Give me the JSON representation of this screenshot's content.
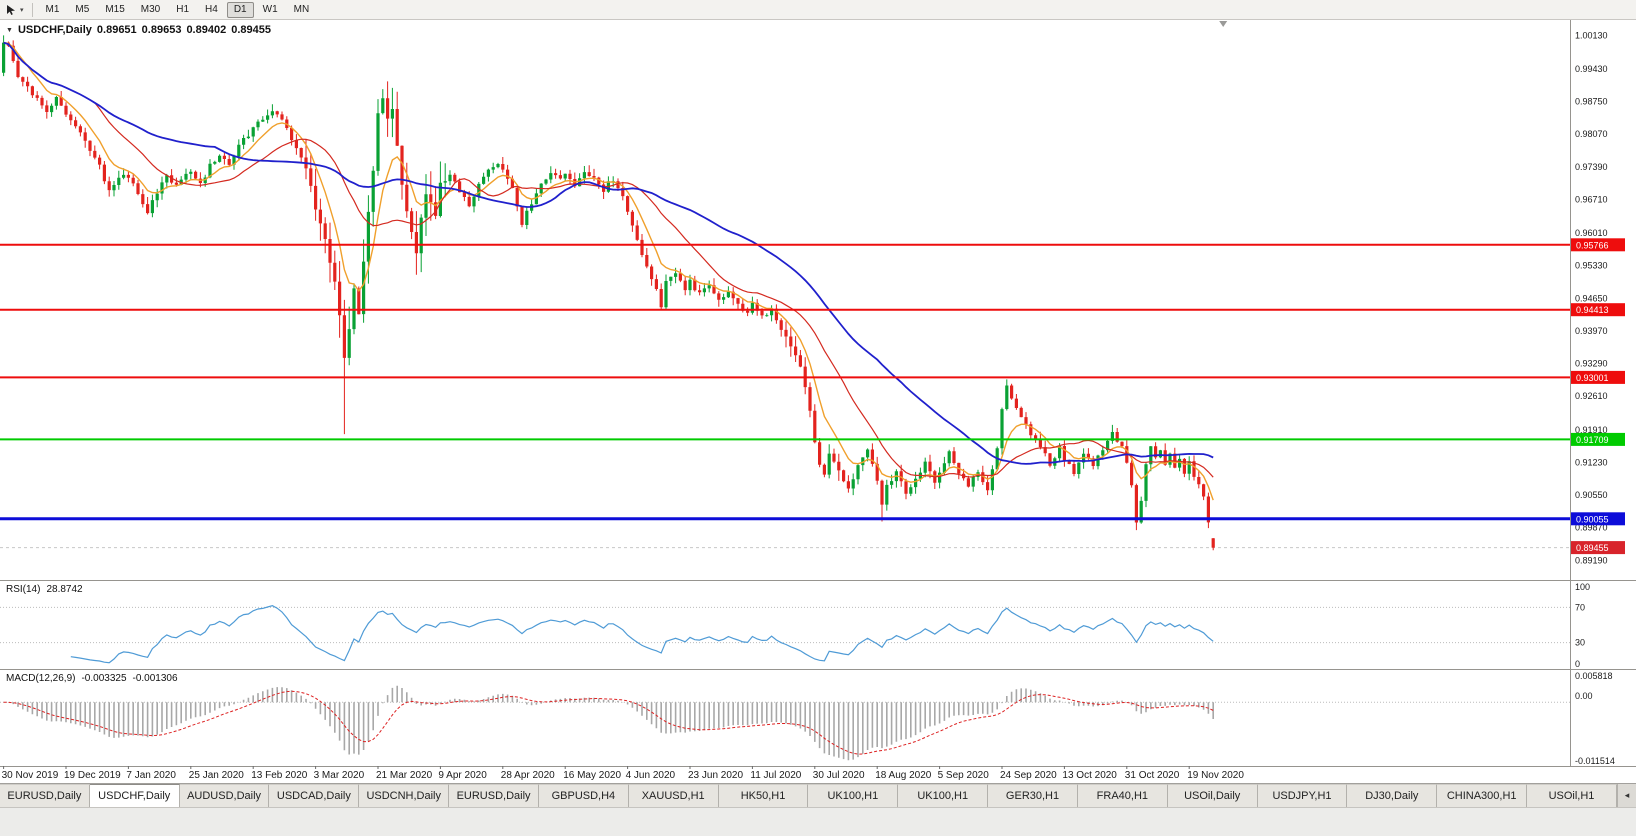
{
  "toolbar": {
    "timeframes": [
      "M1",
      "M5",
      "M15",
      "M30",
      "H1",
      "H4",
      "D1",
      "W1",
      "MN"
    ],
    "active_timeframe": "D1"
  },
  "chart_header": {
    "collapse_icon": "▼",
    "symbol": "USDCHF,Daily",
    "open": "0.89651",
    "high": "0.89653",
    "low": "0.89402",
    "close": "0.89455"
  },
  "chart_data": {
    "type": "candlestick",
    "symbol": "USDCHF",
    "timeframe": "Daily",
    "price_axis": {
      "top_price": 1.0045,
      "bottom_price": 0.8878,
      "ticks": [
        "1.00130",
        "0.99430",
        "0.98750",
        "0.98070",
        "0.97390",
        "0.96710",
        "0.96010",
        "0.95330",
        "0.94650",
        "0.93970",
        "0.93290",
        "0.92610",
        "0.91910",
        "0.91230",
        "0.90550",
        "0.89870",
        "0.89190"
      ]
    },
    "time_axis": {
      "candles_per_label": 13,
      "labels": [
        "30 Nov 2019",
        "19 Dec 2019",
        "7 Jan 2020",
        "25 Jan 2020",
        "13 Feb 2020",
        "3 Mar 2020",
        "21 Mar 2020",
        "9 Apr 2020",
        "28 Apr 2020",
        "16 May 2020",
        "4 Jun 2020",
        "23 Jun 2020",
        "11 Jul 2020",
        "30 Jul 2020",
        "18 Aug 2020",
        "5 Sep 2020",
        "24 Sep 2020",
        "13 Oct 2020",
        "31 Oct 2020",
        "19 Nov 2020"
      ]
    },
    "candles_count": 253,
    "close_anchors": [
      [
        0,
        0.9998
      ],
      [
        1,
        0.9988
      ],
      [
        3,
        0.9925
      ],
      [
        6,
        0.989
      ],
      [
        9,
        0.9855
      ],
      [
        11,
        0.9888
      ],
      [
        13,
        0.9845
      ],
      [
        16,
        0.9805
      ],
      [
        19,
        0.9762
      ],
      [
        22,
        0.969
      ],
      [
        24,
        0.9715
      ],
      [
        26,
        0.9722
      ],
      [
        28,
        0.968
      ],
      [
        30,
        0.9645
      ],
      [
        32,
        0.9685
      ],
      [
        34,
        0.972
      ],
      [
        36,
        0.97
      ],
      [
        39,
        0.9732
      ],
      [
        41,
        0.9705
      ],
      [
        43,
        0.974
      ],
      [
        45,
        0.9762
      ],
      [
        47,
        0.9748
      ],
      [
        49,
        0.9782
      ],
      [
        51,
        0.9805
      ],
      [
        53,
        0.9828
      ],
      [
        56,
        0.9856
      ],
      [
        58,
        0.9832
      ],
      [
        60,
        0.98
      ],
      [
        62,
        0.9762
      ],
      [
        64,
        0.9705
      ],
      [
        65,
        0.9655
      ],
      [
        67,
        0.9585
      ],
      [
        69,
        0.9505
      ],
      [
        70,
        0.9425
      ],
      [
        71,
        0.9335
      ],
      [
        72,
        0.9405
      ],
      [
        73,
        0.948
      ],
      [
        74,
        0.9435
      ],
      [
        75,
        0.9545
      ],
      [
        76,
        0.964
      ],
      [
        77,
        0.9735
      ],
      [
        78,
        0.9845
      ],
      [
        79,
        0.9885
      ],
      [
        80,
        0.984
      ],
      [
        81,
        0.9862
      ],
      [
        82,
        0.978
      ],
      [
        83,
        0.9705
      ],
      [
        84,
        0.9645
      ],
      [
        85,
        0.9602
      ],
      [
        86,
        0.9565
      ],
      [
        87,
        0.9632
      ],
      [
        88,
        0.9678
      ],
      [
        90,
        0.9642
      ],
      [
        91,
        0.9702
      ],
      [
        93,
        0.9728
      ],
      [
        95,
        0.969
      ],
      [
        97,
        0.9662
      ],
      [
        99,
        0.97
      ],
      [
        101,
        0.9728
      ],
      [
        103,
        0.9748
      ],
      [
        104,
        0.973
      ],
      [
        106,
        0.9692
      ],
      [
        108,
        0.9622
      ],
      [
        110,
        0.9662
      ],
      [
        112,
        0.97
      ],
      [
        114,
        0.973
      ],
      [
        116,
        0.9712
      ],
      [
        117,
        0.9725
      ],
      [
        119,
        0.9702
      ],
      [
        121,
        0.973
      ],
      [
        123,
        0.9712
      ],
      [
        125,
        0.9692
      ],
      [
        127,
        0.9715
      ],
      [
        129,
        0.9682
      ],
      [
        130,
        0.9645
      ],
      [
        132,
        0.9585
      ],
      [
        134,
        0.9532
      ],
      [
        136,
        0.9482
      ],
      [
        137,
        0.9445
      ],
      [
        138,
        0.9502
      ],
      [
        140,
        0.9522
      ],
      [
        142,
        0.9482
      ],
      [
        143,
        0.9502
      ],
      [
        145,
        0.9472
      ],
      [
        147,
        0.9492
      ],
      [
        149,
        0.9462
      ],
      [
        151,
        0.9482
      ],
      [
        153,
        0.9452
      ],
      [
        155,
        0.9432
      ],
      [
        156,
        0.9452
      ],
      [
        158,
        0.9425
      ],
      [
        160,
        0.9442
      ],
      [
        162,
        0.9402
      ],
      [
        164,
        0.9362
      ],
      [
        166,
        0.9322
      ],
      [
        167,
        0.9285
      ],
      [
        168,
        0.9225
      ],
      [
        169,
        0.9165
      ],
      [
        170,
        0.9122
      ],
      [
        171,
        0.9095
      ],
      [
        172,
        0.9138
      ],
      [
        174,
        0.9102
      ],
      [
        176,
        0.9065
      ],
      [
        178,
        0.9112
      ],
      [
        180,
        0.9152
      ],
      [
        182,
        0.9085
      ],
      [
        183,
        0.9032
      ],
      [
        184,
        0.9072
      ],
      [
        186,
        0.9102
      ],
      [
        188,
        0.9062
      ],
      [
        190,
        0.9092
      ],
      [
        192,
        0.9122
      ],
      [
        194,
        0.9082
      ],
      [
        195,
        0.9102
      ],
      [
        197,
        0.9142
      ],
      [
        199,
        0.9102
      ],
      [
        201,
        0.9072
      ],
      [
        203,
        0.9102
      ],
      [
        205,
        0.9062
      ],
      [
        206,
        0.9112
      ],
      [
        207,
        0.9158
      ],
      [
        208,
        0.9238
      ],
      [
        209,
        0.9282
      ],
      [
        210,
        0.9255
      ],
      [
        212,
        0.9222
      ],
      [
        214,
        0.9182
      ],
      [
        216,
        0.9152
      ],
      [
        218,
        0.9122
      ],
      [
        220,
        0.9152
      ],
      [
        221,
        0.9132
      ],
      [
        223,
        0.9102
      ],
      [
        225,
        0.9142
      ],
      [
        227,
        0.9112
      ],
      [
        229,
        0.9152
      ],
      [
        231,
        0.9182
      ],
      [
        233,
        0.9152
      ],
      [
        234,
        0.9122
      ],
      [
        235,
        0.9078
      ],
      [
        236,
        0.9002
      ],
      [
        237,
        0.9045
      ],
      [
        238,
        0.9122
      ],
      [
        239,
        0.9152
      ],
      [
        240,
        0.9132
      ],
      [
        241,
        0.9152
      ],
      [
        242,
        0.9122
      ],
      [
        243,
        0.9142
      ],
      [
        244,
        0.9112
      ],
      [
        245,
        0.9132
      ],
      [
        246,
        0.9102
      ],
      [
        247,
        0.9122
      ],
      [
        248,
        0.9092
      ],
      [
        249,
        0.9072
      ],
      [
        250,
        0.9052
      ],
      [
        251,
        0.8998
      ],
      [
        252,
        0.89455
      ]
    ],
    "candle_overrides": {
      "0": {
        "o": 0.9935,
        "h": 1.0013,
        "l": 0.9928
      },
      "71": {
        "l": 0.9182
      },
      "79": {
        "h": 0.9901
      },
      "183": {
        "l": 0.9
      },
      "209": {
        "h": 0.9296
      },
      "236": {
        "l": 0.8982
      },
      "252": {
        "o": 0.89651,
        "h": 0.89653,
        "l": 0.89402,
        "c": 0.89455
      }
    },
    "horizontal_lines": [
      {
        "price": 0.95766,
        "label": "0.95766",
        "color": "#ee0d0d",
        "width": 2
      },
      {
        "price": 0.94413,
        "label": "0.94413",
        "color": "#ee0d0d",
        "width": 2
      },
      {
        "price": 0.93001,
        "label": "0.93001",
        "color": "#ee0d0d",
        "width": 2
      },
      {
        "price": 0.91709,
        "label": "0.91709",
        "color": "#00cb00",
        "width": 2
      },
      {
        "price": 0.90055,
        "label": "0.90055",
        "color": "#0d0dd9",
        "width": 3
      }
    ],
    "current_price": {
      "price": 0.89455,
      "label": "0.89455",
      "color": "#d8242b"
    },
    "moving_averages": [
      {
        "type": "ema",
        "period": 8,
        "color": "#f0a02c",
        "width": 1.4
      },
      {
        "type": "sma",
        "period": 20,
        "color": "#d42a20",
        "width": 1.2
      },
      {
        "type": "sma",
        "period": 45,
        "color": "#2020cc",
        "width": 1.8
      }
    ],
    "indicators": {
      "rsi": {
        "label": "RSI(14)",
        "value": "28.8742",
        "period": 14,
        "axis": [
          "100",
          "70",
          "30",
          "0"
        ],
        "levels": [
          70,
          30
        ]
      },
      "macd": {
        "label": "MACD(12,26,9)",
        "main_value": "-0.003325",
        "signal_value": "-0.001306",
        "fast": 12,
        "slow": 26,
        "signal": 9,
        "axis_top": "0.005818",
        "axis_zero": "0.00",
        "axis_bottom": "-0.011514"
      }
    },
    "colors": {
      "background": "#ffffff",
      "bull": "#09a134",
      "bear": "#e3231e",
      "axis_text": "#1a1a1a",
      "separator": "#96948f",
      "level_dots": "#bcbcbc",
      "bid_line": "#c8c8c8",
      "rsi_line": "#4f9bd6",
      "macd_hist": "#a8a8a8",
      "macd_signal": "#dd2222",
      "shift_marker": "#9a9a98"
    }
  },
  "tabs": {
    "active_index": 1,
    "scroll_icon": "◂",
    "items": [
      "EURUSD,Daily",
      "USDCHF,Daily",
      "AUDUSD,Daily",
      "USDCAD,Daily",
      "USDCNH,Daily",
      "EURUSD,Daily",
      "GBPUSD,H4",
      "XAUUSD,H1",
      "HK50,H1",
      "UK100,H1",
      "UK100,H1",
      "GER30,H1",
      "FRA40,H1",
      "USOil,Daily",
      "USDJPY,H1",
      "DJ30,Daily",
      "CHINA300,H1",
      "USOil,H1"
    ]
  }
}
